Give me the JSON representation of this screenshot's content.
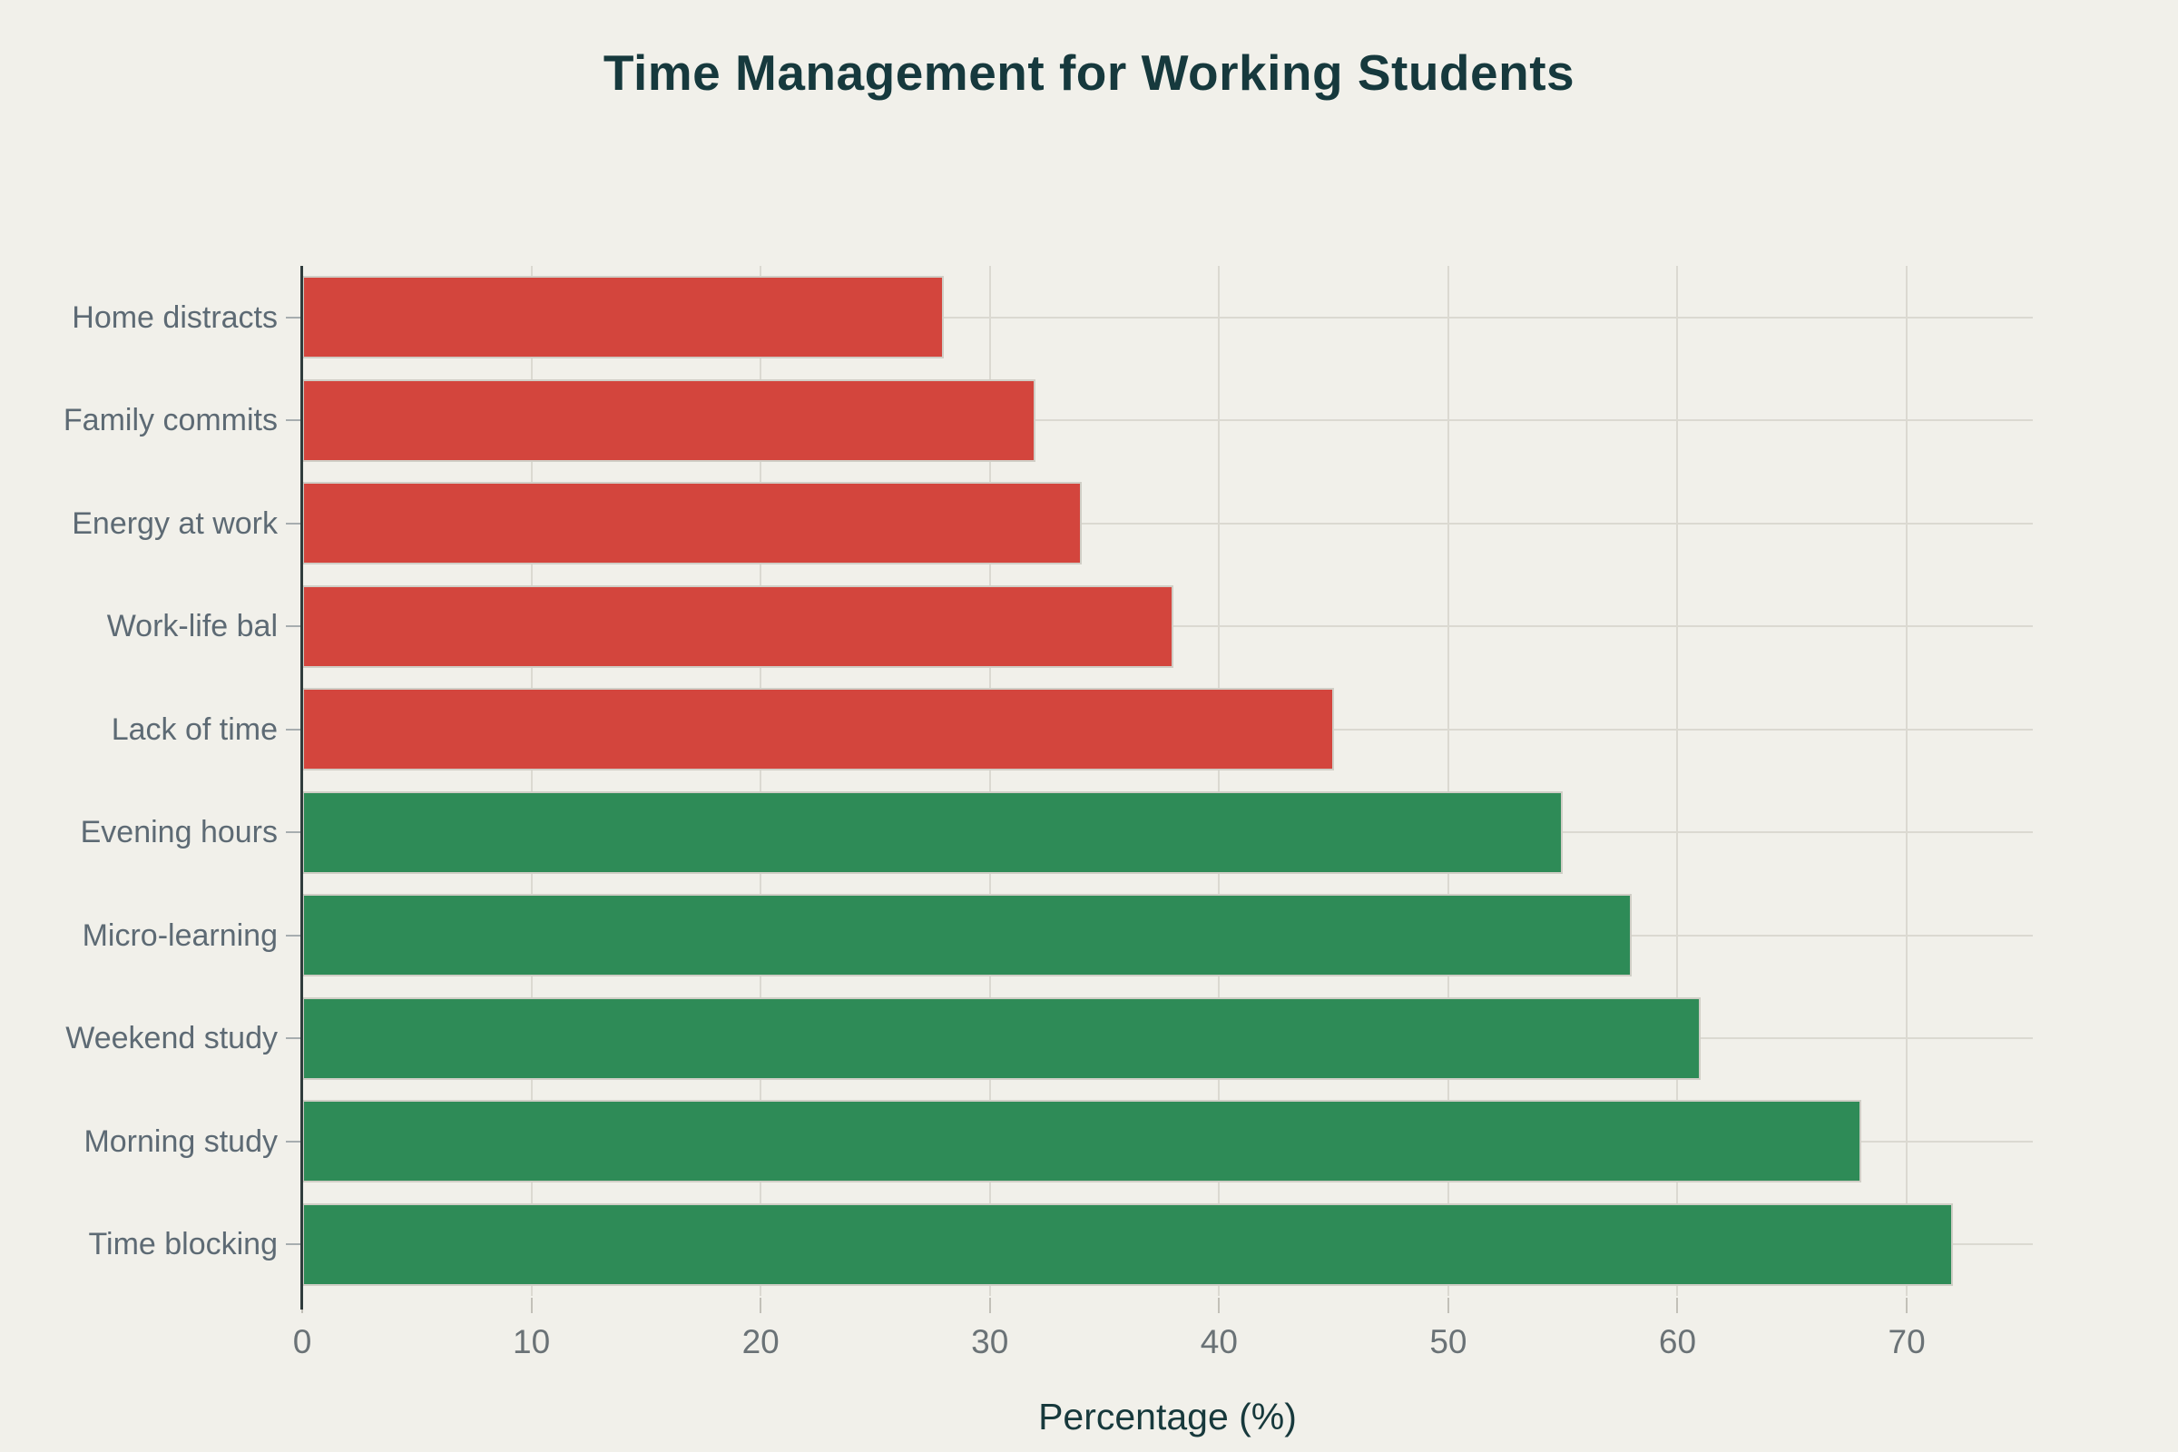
{
  "chart_data": {
    "type": "bar",
    "orientation": "horizontal",
    "title": "Time Management for Working Students",
    "xlabel": "Percentage (%)",
    "ylabel": "",
    "categories": [
      "Home distracts",
      "Family commits",
      "Energy at work",
      "Work-life bal",
      "Lack of time",
      "Evening hours",
      "Micro-learning",
      "Weekend study",
      "Morning study",
      "Time blocking"
    ],
    "values": [
      28,
      32,
      34,
      38,
      45,
      55,
      58,
      61,
      68,
      72
    ],
    "bar_colors": [
      "#d3453d",
      "#d3453d",
      "#d3453d",
      "#d3453d",
      "#d3453d",
      "#2e8b57",
      "#2e8b57",
      "#2e8b57",
      "#2e8b57",
      "#2e8b57"
    ],
    "x_ticks": [
      0,
      10,
      20,
      30,
      40,
      50,
      60,
      70
    ],
    "xlim": [
      0,
      75.5
    ],
    "grid": true,
    "legend": false
  },
  "theme": {
    "background": "#f1f0ea",
    "challenge_color": "#d3453d",
    "strategy_color": "#2e8b57",
    "title_color": "#16393d",
    "category_label_color": "#5d6a74",
    "tick_label_color": "#6a7276",
    "grid_color": "#dbd9d1",
    "axis_color": "#2f3c3c"
  }
}
